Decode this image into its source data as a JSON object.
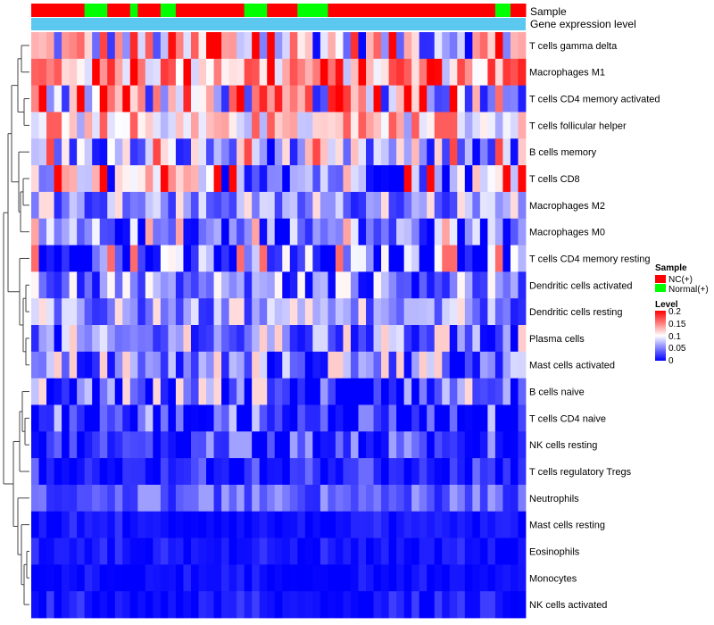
{
  "chart_data": {
    "type": "heatmap",
    "annotations": {
      "sample_label": "Sample",
      "level_label": "Gene expression level"
    },
    "sample_groups": [
      "NC",
      "NC",
      "NC",
      "NC",
      "NC",
      "NC",
      "NC",
      "N",
      "N",
      "N",
      "NC",
      "NC",
      "NC",
      "N",
      "NC",
      "NC",
      "NC",
      "N",
      "N",
      "NC",
      "NC",
      "NC",
      "NC",
      "NC",
      "NC",
      "NC",
      "NC",
      "NC",
      "N",
      "N",
      "N",
      "NC",
      "NC",
      "NC",
      "NC",
      "N",
      "N",
      "N",
      "N",
      "NC",
      "NC",
      "NC",
      "NC",
      "NC",
      "NC",
      "NC",
      "NC",
      "NC",
      "NC",
      "NC",
      "NC",
      "NC",
      "NC",
      "NC",
      "NC",
      "NC",
      "NC",
      "NC",
      "NC",
      "NC",
      "NC",
      "N",
      "N",
      "NC",
      "NC"
    ],
    "rows": [
      "T cells gamma delta",
      "Macrophages M1",
      "T cells CD4 memory activated",
      "T cells follicular helper",
      "B cells memory",
      "T cells CD8",
      "Macrophages M2",
      "Macrophages M0",
      "T cells CD4 memory resting",
      "Dendritic cells activated",
      "Dendritic cells resting",
      "Plasma cells",
      "Mast cells activated",
      "B cells naive",
      "T cells CD4 naive",
      "NK cells resting",
      "T cells regulatory  Tregs",
      "Neutrophils",
      "Mast cells resting",
      "Eosinophils",
      "Monocytes",
      "NK cells activated"
    ],
    "row_mean_level": [
      0.1,
      0.14,
      0.1,
      0.1,
      0.06,
      0.07,
      0.05,
      0.04,
      0.03,
      0.04,
      0.05,
      0.04,
      0.04,
      0.02,
      0.015,
      0.015,
      0.01,
      0.03,
      0.005,
      0.005,
      0.002,
      0.005
    ],
    "row_spread": [
      0.1,
      0.07,
      0.09,
      0.04,
      0.07,
      0.08,
      0.04,
      0.06,
      0.08,
      0.04,
      0.04,
      0.05,
      0.05,
      0.06,
      0.04,
      0.03,
      0.02,
      0.02,
      0.01,
      0.01,
      0.008,
      0.012
    ],
    "n_columns": 65,
    "legend": {
      "sample_title": "Sample",
      "sample_entries": [
        {
          "label": "NC(+)",
          "color": "#ff0000"
        },
        {
          "label": "Normal(+)",
          "color": "#00ff00"
        }
      ],
      "level_title": "Level",
      "level_ticks": [
        "0.2",
        "0.15",
        "0.1",
        "0.05",
        "0"
      ],
      "level_range": [
        0,
        0.2
      ]
    },
    "colors": {
      "low": "#0000ff",
      "mid": "#ffffff",
      "high": "#ff0000",
      "level_bar": "#5cc8f0"
    }
  }
}
